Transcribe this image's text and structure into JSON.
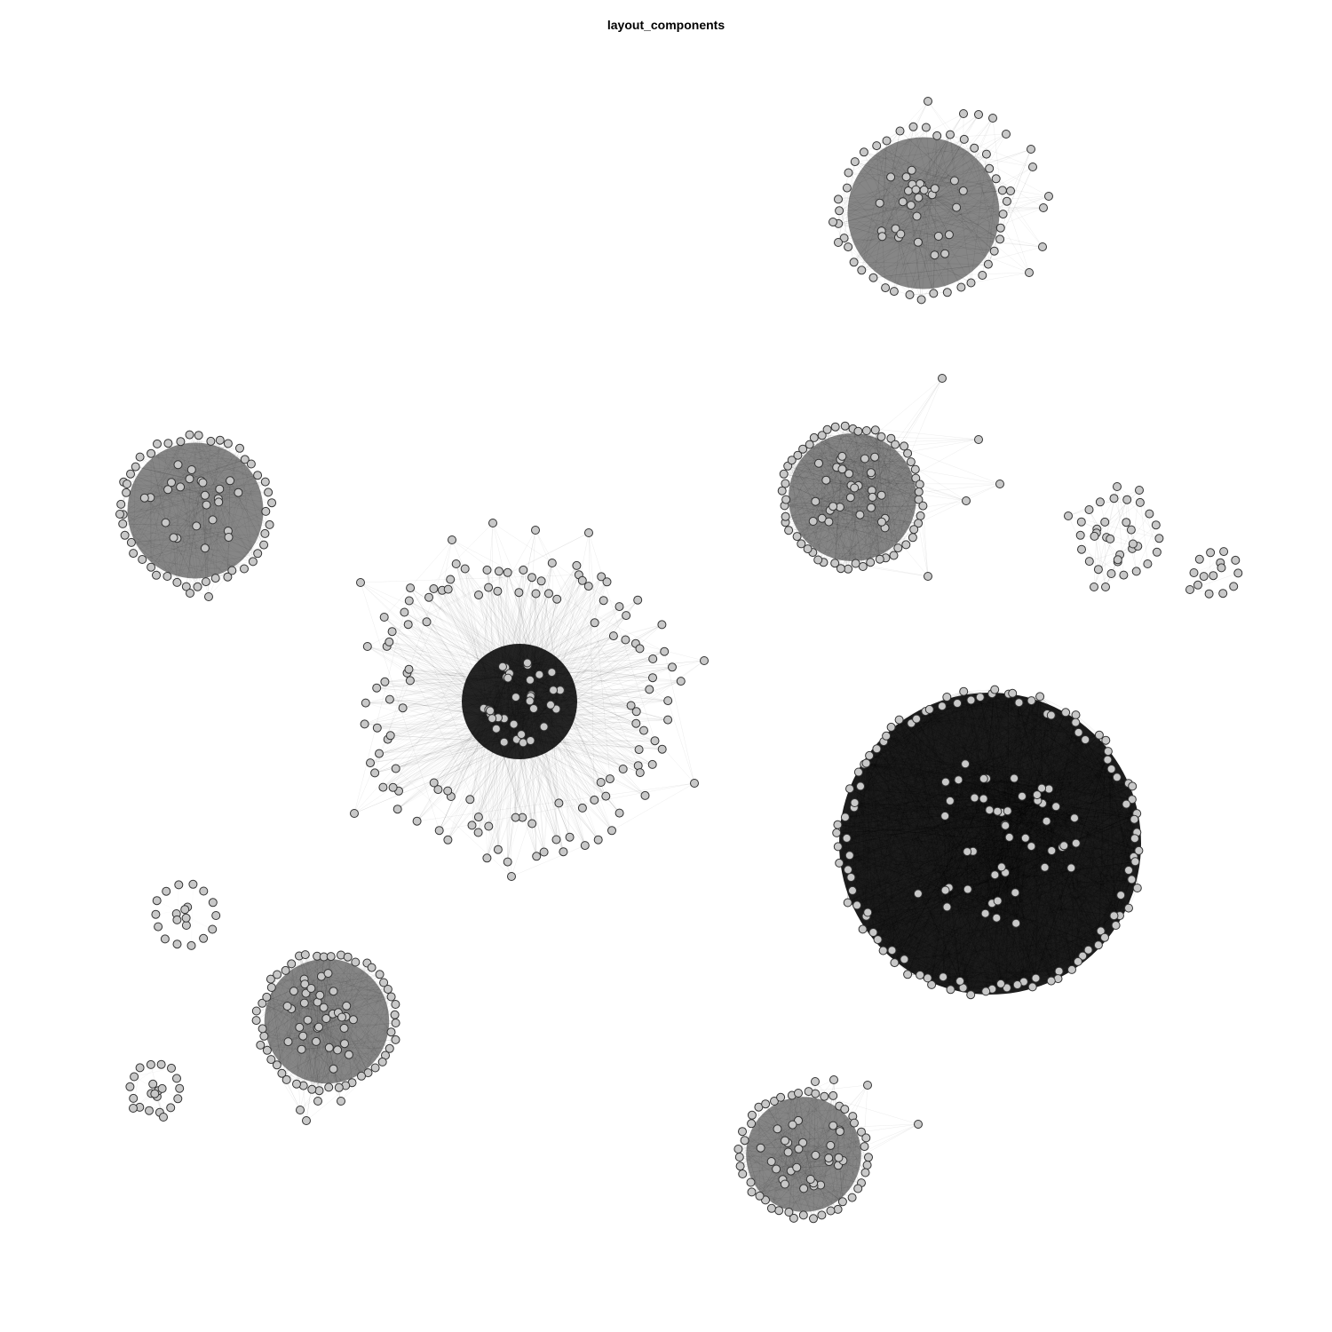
{
  "title": "layout_components",
  "colors": {
    "node_fill": "#c8c8c8",
    "node_stroke": "#333333",
    "edge": "#000000",
    "background": "#ffffff"
  }
}
